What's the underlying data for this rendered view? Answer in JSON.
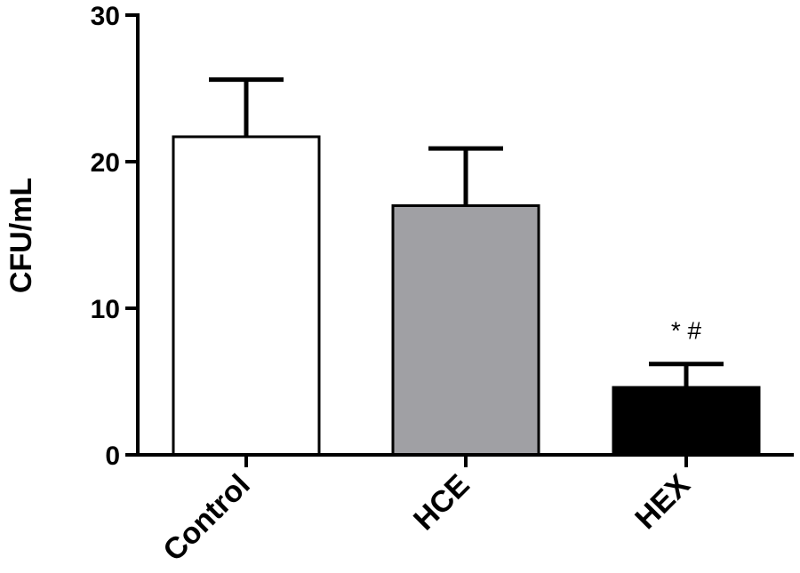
{
  "chart_data": {
    "type": "bar",
    "title": "",
    "xlabel": "",
    "ylabel": "CFU/mL",
    "ylim": [
      0,
      30
    ],
    "yticks": [
      0,
      10,
      20,
      30
    ],
    "grid": false,
    "categories": [
      "Control",
      "HCE",
      "HEX"
    ],
    "values": [
      21.7,
      17.0,
      4.6
    ],
    "errors": [
      3.9,
      3.9,
      1.6
    ],
    "colors": [
      "#ffffff",
      "#a0a0a4",
      "#000000"
    ],
    "annotations": [
      {
        "category": "HEX",
        "text": "* #"
      }
    ]
  }
}
